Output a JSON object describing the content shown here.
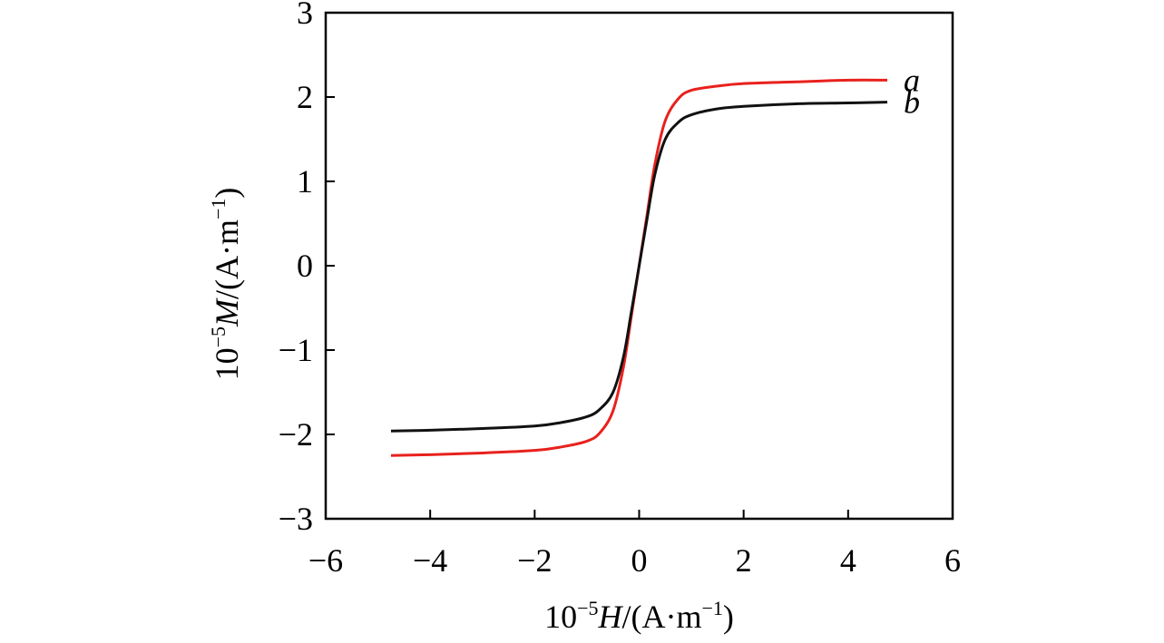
{
  "chart_data": {
    "type": "line",
    "xlabel": {
      "prefix": "10",
      "exp": "−5",
      "var": "H",
      "unit_open": "/(A·m",
      "unit_exp": "−1",
      "unit_close": ")"
    },
    "ylabel": {
      "prefix": "10",
      "exp": "−5",
      "var": "M",
      "unit_open": "/(A·m",
      "unit_exp": "−1",
      "unit_close": ")"
    },
    "xlim": [
      -6,
      6
    ],
    "ylim": [
      -3,
      3
    ],
    "xticks": [
      -6,
      -4,
      -2,
      0,
      2,
      4,
      6
    ],
    "xtick_labels": [
      "−6",
      "−4",
      "−2",
      "0",
      "2",
      "4",
      "6"
    ],
    "yticks": [
      -3,
      -2,
      -1,
      0,
      1,
      2,
      3
    ],
    "ytick_labels": [
      "−3",
      "−2",
      "−1",
      "0",
      "1",
      "2",
      "3"
    ],
    "grid": false,
    "legend": "none",
    "series": [
      {
        "name": "a",
        "color": "#e8211d",
        "x": [
          -4.75,
          -4.0,
          -3.0,
          -2.0,
          -1.5,
          -1.0,
          -0.75,
          -0.5,
          -0.3,
          -0.15,
          0.0,
          0.15,
          0.3,
          0.5,
          0.75,
          1.0,
          1.5,
          2.0,
          3.0,
          4.0,
          4.75
        ],
        "y": [
          -2.25,
          -2.24,
          -2.22,
          -2.19,
          -2.15,
          -2.08,
          -1.98,
          -1.72,
          -1.2,
          -0.6,
          0.0,
          0.6,
          1.2,
          1.72,
          1.98,
          2.08,
          2.13,
          2.16,
          2.18,
          2.2,
          2.2
        ]
      },
      {
        "name": "b",
        "color": "#111111",
        "x": [
          -4.75,
          -4.0,
          -3.0,
          -2.0,
          -1.5,
          -1.0,
          -0.75,
          -0.5,
          -0.3,
          -0.15,
          0.0,
          0.15,
          0.3,
          0.5,
          0.75,
          1.0,
          1.5,
          2.0,
          3.0,
          4.0,
          4.75
        ],
        "y": [
          -1.96,
          -1.95,
          -1.93,
          -1.9,
          -1.86,
          -1.79,
          -1.7,
          -1.5,
          -1.08,
          -0.55,
          0.0,
          0.55,
          1.08,
          1.5,
          1.7,
          1.79,
          1.86,
          1.89,
          1.92,
          1.93,
          1.94
        ]
      }
    ]
  }
}
